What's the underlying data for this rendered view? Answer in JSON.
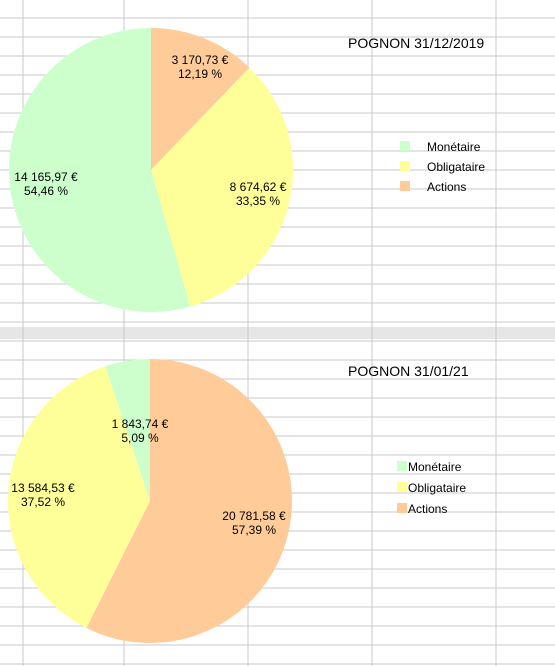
{
  "colors": {
    "monetaire": "#ccffcc",
    "obligataire": "#ffff99",
    "actions": "#ffcc99",
    "grid": "#c8c8c8",
    "band": "#e6e6e6"
  },
  "chart_data": [
    {
      "type": "pie",
      "title": "POGNON 31/12/2019",
      "legend_position": "right",
      "start_angle_deg": 0,
      "direction": "clockwise",
      "slices": [
        {
          "name": "Actions",
          "value": 3170.73,
          "value_label": "3 170,73 €",
          "percent_label": "12,19 %",
          "color_key": "actions"
        },
        {
          "name": "Obligataire",
          "value": 8674.62,
          "value_label": "8 674,62 €",
          "percent_label": "33,35 %",
          "color_key": "obligataire"
        },
        {
          "name": "Monétaire",
          "value": 14165.97,
          "value_label": "14 165,97 €",
          "percent_label": "54,46 %",
          "color_key": "monetaire"
        }
      ],
      "legend": [
        {
          "label": "Monétaire",
          "color_key": "monetaire"
        },
        {
          "label": "Obligataire",
          "color_key": "obligataire"
        },
        {
          "label": "Actions",
          "color_key": "actions"
        }
      ]
    },
    {
      "type": "pie",
      "title": "POGNON 31/01/21",
      "legend_position": "right",
      "start_angle_deg": 0,
      "direction": "clockwise",
      "slices": [
        {
          "name": "Actions",
          "value": 20781.58,
          "value_label": "20 781,58 €",
          "percent_label": "57,39 %",
          "color_key": "actions"
        },
        {
          "name": "Obligataire",
          "value": 13584.53,
          "value_label": "13 584,53 €",
          "percent_label": "37,52 %",
          "color_key": "obligataire"
        },
        {
          "name": "Monétaire",
          "value": 1843.74,
          "value_label": "1 843,74 €",
          "percent_label": "5,09 %",
          "color_key": "monetaire"
        }
      ],
      "legend": [
        {
          "label": "Monétaire",
          "color_key": "monetaire"
        },
        {
          "label": "Obligataire",
          "color_key": "obligataire"
        },
        {
          "label": "Actions",
          "color_key": "actions"
        }
      ]
    }
  ]
}
